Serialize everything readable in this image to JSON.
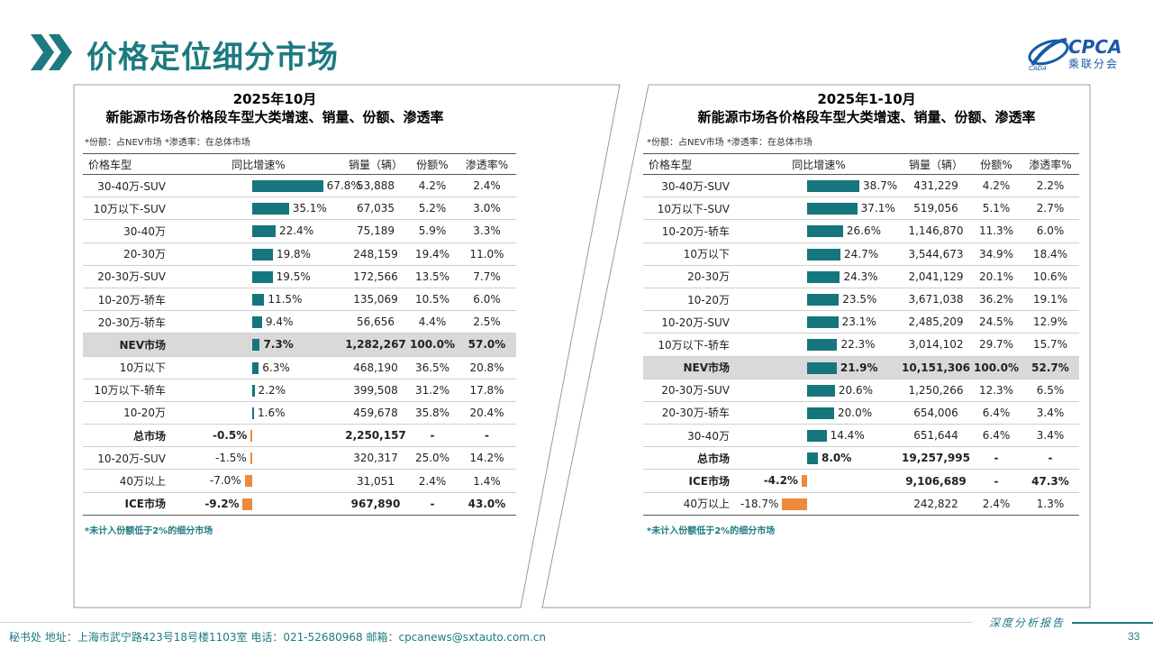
{
  "header": {
    "title": "价格定位细分市场",
    "logo_text": "CPCA",
    "logo_sub": "乘联分会"
  },
  "colors": {
    "accent": "#15767d",
    "negative": "#ef8a3c",
    "highlight_row": "#d9d9d9"
  },
  "panels": [
    {
      "title_line1": "2025年10月",
      "title_line2": "新能源市场各价格段车型大类增速、销量、份额、渗透率",
      "note": "*份额：占NEV市场   *渗透率：在总体市场",
      "footnote": "*未计入份额低于2%的细分市场",
      "columns": [
        "价格车型",
        "同比增速%",
        "销量（辆）",
        "份额%",
        "渗透率%"
      ],
      "rows": [
        {
          "name": "30-40万-SUV",
          "growth": 67.8,
          "growth_label": "67.8%",
          "sales": "53,888",
          "share": "4.2%",
          "pen": "2.4%",
          "style": ""
        },
        {
          "name": "10万以下-SUV",
          "growth": 35.1,
          "growth_label": "35.1%",
          "sales": "67,035",
          "share": "5.2%",
          "pen": "3.0%",
          "style": ""
        },
        {
          "name": "30-40万",
          "growth": 22.4,
          "growth_label": "22.4%",
          "sales": "75,189",
          "share": "5.9%",
          "pen": "3.3%",
          "style": ""
        },
        {
          "name": "20-30万",
          "growth": 19.8,
          "growth_label": "19.8%",
          "sales": "248,159",
          "share": "19.4%",
          "pen": "11.0%",
          "style": ""
        },
        {
          "name": "20-30万-SUV",
          "growth": 19.5,
          "growth_label": "19.5%",
          "sales": "172,566",
          "share": "13.5%",
          "pen": "7.7%",
          "style": ""
        },
        {
          "name": "10-20万-轿车",
          "growth": 11.5,
          "growth_label": "11.5%",
          "sales": "135,069",
          "share": "10.5%",
          "pen": "6.0%",
          "style": ""
        },
        {
          "name": "20-30万-轿车",
          "growth": 9.4,
          "growth_label": "9.4%",
          "sales": "56,656",
          "share": "4.4%",
          "pen": "2.5%",
          "style": ""
        },
        {
          "name": "NEV市场",
          "growth": 7.3,
          "growth_label": "7.3%",
          "sales": "1,282,267",
          "share": "100.0%",
          "pen": "57.0%",
          "style": "hl"
        },
        {
          "name": "10万以下",
          "growth": 6.3,
          "growth_label": "6.3%",
          "sales": "468,190",
          "share": "36.5%",
          "pen": "20.8%",
          "style": ""
        },
        {
          "name": "10万以下-轿车",
          "growth": 2.2,
          "growth_label": "2.2%",
          "sales": "399,508",
          "share": "31.2%",
          "pen": "17.8%",
          "style": ""
        },
        {
          "name": "10-20万",
          "growth": 1.6,
          "growth_label": "1.6%",
          "sales": "459,678",
          "share": "35.8%",
          "pen": "20.4%",
          "style": ""
        },
        {
          "name": "总市场",
          "growth": -0.5,
          "growth_label": "-0.5%",
          "sales": "2,250,157",
          "share": "-",
          "pen": "-",
          "style": "bold"
        },
        {
          "name": "10-20万-SUV",
          "growth": -1.5,
          "growth_label": "-1.5%",
          "sales": "320,317",
          "share": "25.0%",
          "pen": "14.2%",
          "style": ""
        },
        {
          "name": "40万以上",
          "growth": -7.0,
          "growth_label": "-7.0%",
          "sales": "31,051",
          "share": "2.4%",
          "pen": "1.4%",
          "style": ""
        },
        {
          "name": "ICE市场",
          "growth": -9.2,
          "growth_label": "-9.2%",
          "sales": "967,890",
          "share": "-",
          "pen": "43.0%",
          "style": "bold"
        }
      ]
    },
    {
      "title_line1": "2025年1-10月",
      "title_line2": "新能源市场各价格段车型大类增速、销量、份额、渗透率",
      "note": "*份额：占NEV市场   *渗透率：在总体市场",
      "footnote": "*未计入份额低于2%的细分市场",
      "columns": [
        "价格车型",
        "同比增速%",
        "销量（辆）",
        "份额%",
        "渗透率%"
      ],
      "rows": [
        {
          "name": "30-40万-SUV",
          "growth": 38.7,
          "growth_label": "38.7%",
          "sales": "431,229",
          "share": "4.2%",
          "pen": "2.2%",
          "style": ""
        },
        {
          "name": "10万以下-SUV",
          "growth": 37.1,
          "growth_label": "37.1%",
          "sales": "519,056",
          "share": "5.1%",
          "pen": "2.7%",
          "style": ""
        },
        {
          "name": "10-20万-轿车",
          "growth": 26.6,
          "growth_label": "26.6%",
          "sales": "1,146,870",
          "share": "11.3%",
          "pen": "6.0%",
          "style": ""
        },
        {
          "name": "10万以下",
          "growth": 24.7,
          "growth_label": "24.7%",
          "sales": "3,544,673",
          "share": "34.9%",
          "pen": "18.4%",
          "style": ""
        },
        {
          "name": "20-30万",
          "growth": 24.3,
          "growth_label": "24.3%",
          "sales": "2,041,129",
          "share": "20.1%",
          "pen": "10.6%",
          "style": ""
        },
        {
          "name": "10-20万",
          "growth": 23.5,
          "growth_label": "23.5%",
          "sales": "3,671,038",
          "share": "36.2%",
          "pen": "19.1%",
          "style": ""
        },
        {
          "name": "10-20万-SUV",
          "growth": 23.1,
          "growth_label": "23.1%",
          "sales": "2,485,209",
          "share": "24.5%",
          "pen": "12.9%",
          "style": ""
        },
        {
          "name": "10万以下-轿车",
          "growth": 22.3,
          "growth_label": "22.3%",
          "sales": "3,014,102",
          "share": "29.7%",
          "pen": "15.7%",
          "style": ""
        },
        {
          "name": "NEV市场",
          "growth": 21.9,
          "growth_label": "21.9%",
          "sales": "10,151,306",
          "share": "100.0%",
          "pen": "52.7%",
          "style": "hl"
        },
        {
          "name": "20-30万-SUV",
          "growth": 20.6,
          "growth_label": "20.6%",
          "sales": "1,250,266",
          "share": "12.3%",
          "pen": "6.5%",
          "style": ""
        },
        {
          "name": "20-30万-轿车",
          "growth": 20.0,
          "growth_label": "20.0%",
          "sales": "654,006",
          "share": "6.4%",
          "pen": "3.4%",
          "style": ""
        },
        {
          "name": "30-40万",
          "growth": 14.4,
          "growth_label": "14.4%",
          "sales": "651,644",
          "share": "6.4%",
          "pen": "3.4%",
          "style": ""
        },
        {
          "name": "总市场",
          "growth": 8.0,
          "growth_label": "8.0%",
          "sales": "19,257,995",
          "share": "-",
          "pen": "-",
          "style": "bold"
        },
        {
          "name": "ICE市场",
          "growth": -4.2,
          "growth_label": "-4.2%",
          "sales": "9,106,689",
          "share": "-",
          "pen": "47.3%",
          "style": "bold"
        },
        {
          "name": "40万以上",
          "growth": -18.7,
          "growth_label": "-18.7%",
          "sales": "242,822",
          "share": "2.4%",
          "pen": "1.3%",
          "style": ""
        }
      ]
    }
  ],
  "footer": {
    "tag": "深度分析报告",
    "text": "秘书处   地址：上海市武宁路423号18号楼1103室   电话：021-52680968    邮箱：cpcanews@sxtauto.com.cn",
    "page": "33"
  }
}
